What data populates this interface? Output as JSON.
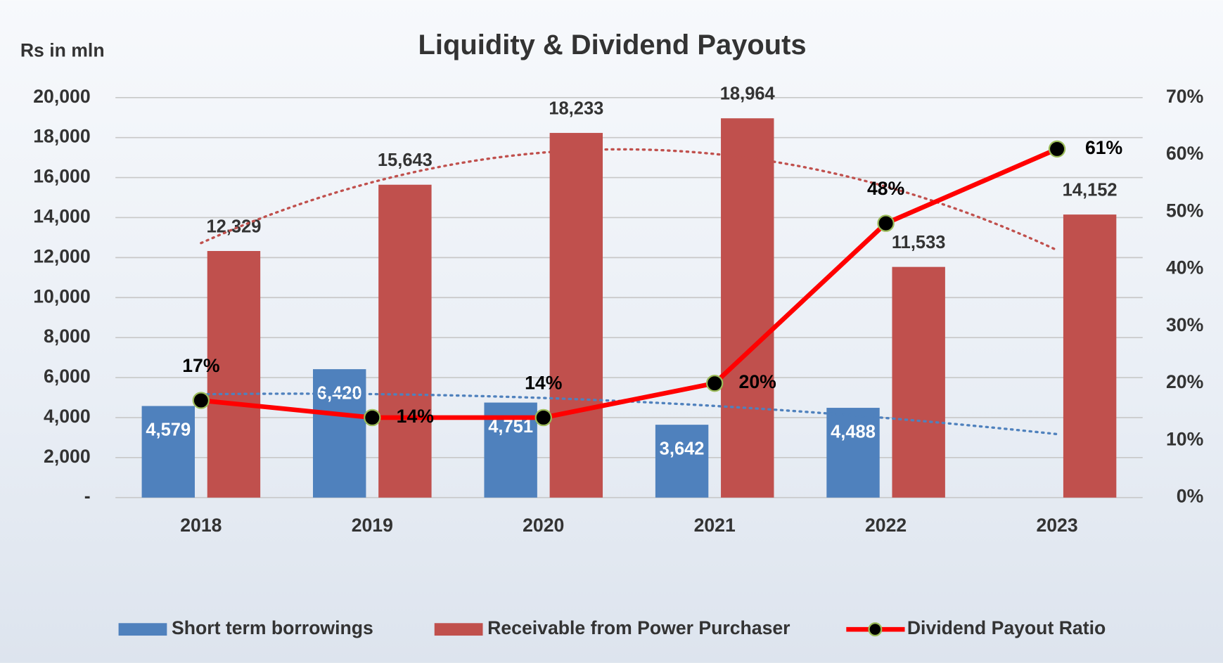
{
  "chart_data": {
    "type": "bar_line",
    "title": "Liquidity  & Dividend Payouts",
    "y_axis_label": "Rs in mln",
    "categories": [
      "2018",
      "2019",
      "2020",
      "2021",
      "2022",
      "2023"
    ],
    "series": [
      {
        "name": "Short term borrowings",
        "color": "#4f81bd",
        "type": "bar",
        "values": [
          4579,
          6420,
          4751,
          3642,
          4488,
          null
        ],
        "value_labels": [
          "4,579",
          "6,420",
          "4,751",
          "3,642",
          "4,488",
          null
        ]
      },
      {
        "name": "Receivable from Power Purchaser",
        "color": "#c0504d",
        "type": "bar",
        "values": [
          12329,
          15643,
          18233,
          18964,
          11533,
          14152
        ],
        "value_labels": [
          "12,329",
          "15,643",
          "18,233",
          "18,964",
          "11,533",
          "14,152"
        ]
      },
      {
        "name": "Dividend Payout Ratio",
        "color": "#ff0000",
        "type": "line",
        "axis": "y2",
        "values": [
          17,
          14,
          14,
          20,
          48,
          61
        ],
        "value_labels": [
          "17%",
          "14%",
          "14%",
          "20%",
          "48%",
          "61%"
        ]
      }
    ],
    "ylim": [
      0,
      20000
    ],
    "yticks": [
      {
        "value": 0,
        "label": "-"
      },
      {
        "value": 2000,
        "label": "2,000"
      },
      {
        "value": 4000,
        "label": "4,000"
      },
      {
        "value": 6000,
        "label": "6,000"
      },
      {
        "value": 8000,
        "label": "8,000"
      },
      {
        "value": 10000,
        "label": "10,000"
      },
      {
        "value": 12000,
        "label": "12,000"
      },
      {
        "value": 14000,
        "label": "14,000"
      },
      {
        "value": 16000,
        "label": "16,000"
      },
      {
        "value": 18000,
        "label": "18,000"
      },
      {
        "value": 20000,
        "label": "20,000"
      }
    ],
    "y2lim": [
      0,
      70
    ],
    "y2ticks": [
      {
        "value": 0,
        "label": "0%"
      },
      {
        "value": 10,
        "label": "10%"
      },
      {
        "value": 20,
        "label": "20%"
      },
      {
        "value": 30,
        "label": "30%"
      },
      {
        "value": 40,
        "label": "40%"
      },
      {
        "value": 50,
        "label": "50%"
      },
      {
        "value": 60,
        "label": "60%"
      },
      {
        "value": 70,
        "label": "70%"
      }
    ],
    "grid": true,
    "legend": "bottom",
    "trendlines": true
  }
}
